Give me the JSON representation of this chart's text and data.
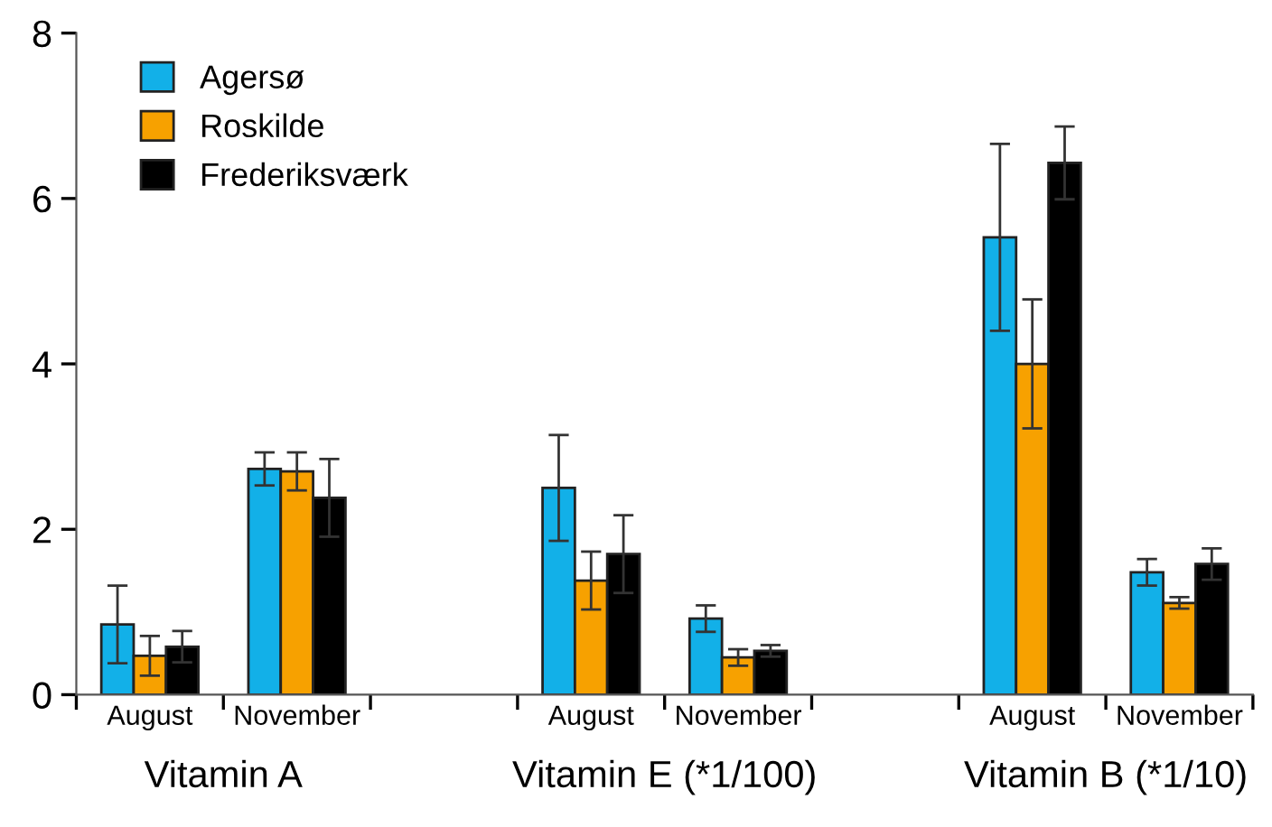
{
  "chart_data": {
    "type": "bar",
    "categories": [
      "August",
      "November",
      null,
      "August",
      "November",
      null,
      "August",
      "November"
    ],
    "series": [
      {
        "name": "Agersø",
        "color": "#12b0e8",
        "values": [
          0.85,
          2.73,
          null,
          2.5,
          0.92,
          null,
          5.53,
          1.48
        ],
        "errors": [
          0.47,
          0.2,
          null,
          0.64,
          0.16,
          null,
          1.13,
          0.16
        ]
      },
      {
        "name": "Roskilde",
        "color": "#f7a100",
        "values": [
          0.47,
          2.7,
          null,
          1.38,
          0.45,
          null,
          4.0,
          1.11
        ],
        "errors": [
          0.24,
          0.23,
          null,
          0.35,
          0.1,
          null,
          0.78,
          0.07
        ]
      },
      {
        "name": "Frederiksværk",
        "color": "#000000",
        "values": [
          0.58,
          2.38,
          null,
          1.7,
          0.53,
          null,
          6.43,
          1.58
        ],
        "errors": [
          0.19,
          0.47,
          null,
          0.47,
          0.07,
          null,
          0.44,
          0.19
        ]
      }
    ],
    "annotations": [
      "Vitamin A",
      "Vitamin E (*1/100)",
      "Vitamin B (*1/10)"
    ],
    "ylim": [
      0,
      8
    ],
    "yticks": [
      0,
      2,
      4,
      6,
      8
    ],
    "grid": false,
    "legend": "top left"
  }
}
